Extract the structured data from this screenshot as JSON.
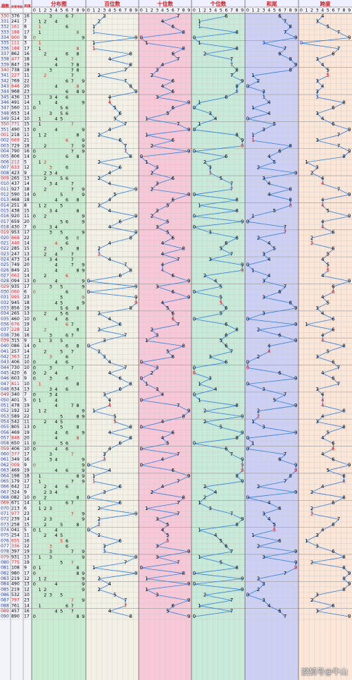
{
  "header": {
    "row_col_label": "期数",
    "num_col_label": "开奖号码",
    "sum_col_label": "和值"
  },
  "sections": [
    {
      "name": "分布图",
      "color": "#c8ecd0"
    },
    {
      "name": "百位数",
      "color": "#f3f1e6"
    },
    {
      "name": "十位数",
      "color": "#f8c8d8"
    },
    {
      "name": "个位数",
      "color": "#c8ead8"
    },
    {
      "name": "和尾",
      "color": "#cdd0f4"
    },
    {
      "name": "跨度",
      "color": "#fbe6d8"
    }
  ],
  "digit_labels": [
    "0",
    "1",
    "2",
    "3",
    "4",
    "5",
    "6",
    "7",
    "8",
    "9"
  ],
  "watermark": "搜狐号@牛山",
  "colors": {
    "hit": "#000000",
    "repeat": "#e02020",
    "blue": "#1a3ed8",
    "line": "#2f7fe0",
    "issue": "#cc2020",
    "grid": "#c9c9c9"
  },
  "chart_data": {
    "type": "table",
    "title": "",
    "series": [
      {
        "name": "百位数"
      },
      {
        "name": "十位数"
      },
      {
        "name": "个位数"
      },
      {
        "name": "和尾"
      },
      {
        "name": "跨度"
      }
    ],
    "rows": [
      {
        "issue": "330",
        "num": "376",
        "sum": 16
      },
      {
        "issue": "331",
        "num": "241",
        "sum": 7
      },
      {
        "issue": "332",
        "num": "161",
        "sum": 8
      },
      {
        "issue": "333",
        "num": "188",
        "sum": 17
      },
      {
        "issue": "334",
        "num": "900",
        "sum": 9
      },
      {
        "issue": "335",
        "num": "111",
        "sum": 3
      },
      {
        "issue": "336",
        "num": "188",
        "sum": 17
      },
      {
        "issue": "337",
        "num": "862",
        "sum": 16
      },
      {
        "issue": "338",
        "num": "477",
        "sum": 18
      },
      {
        "issue": "339",
        "num": "847",
        "sum": 19
      },
      {
        "issue": "340",
        "num": "738",
        "sum": 18
      },
      {
        "issue": "341",
        "num": "227",
        "sum": 11
      },
      {
        "issue": "342",
        "num": "769",
        "sum": 22
      },
      {
        "issue": "343",
        "num": "848",
        "sum": 20
      },
      {
        "issue": "344",
        "num": "968",
        "sum": 23
      },
      {
        "issue": "345",
        "num": "436",
        "sum": 13
      },
      {
        "issue": "346",
        "num": "491",
        "sum": 14
      },
      {
        "issue": "347",
        "num": "560",
        "sum": 11
      },
      {
        "issue": "348",
        "num": "653",
        "sum": 14
      },
      {
        "issue": "349",
        "num": "514",
        "sum": 10
      },
      {
        "issue": "350",
        "num": "771",
        "sum": 15
      },
      {
        "issue": "351",
        "num": "490",
        "sum": 13
      },
      {
        "issue": "001",
        "num": "218",
        "sum": 11
      },
      {
        "issue": "002",
        "num": "669",
        "sum": 21
      },
      {
        "issue": "003",
        "num": "729",
        "sum": 18
      },
      {
        "issue": "004",
        "num": "790",
        "sum": 16
      },
      {
        "issue": "005",
        "num": "806",
        "sum": 14
      },
      {
        "issue": "006",
        "num": "212",
        "sum": 5
      },
      {
        "issue": "007",
        "num": "633",
        "sum": 12
      },
      {
        "issue": "008",
        "num": "423",
        "sum": 9
      },
      {
        "issue": "009",
        "num": "265",
        "sum": 13
      },
      {
        "issue": "010",
        "num": "437",
        "sum": 14
      },
      {
        "issue": "011",
        "num": "927",
        "sum": 18
      },
      {
        "issue": "012",
        "num": "590",
        "sum": 14
      },
      {
        "issue": "013",
        "num": "468",
        "sum": 18
      },
      {
        "issue": "014",
        "num": "251",
        "sum": 8
      },
      {
        "issue": "015",
        "num": "438",
        "sum": 15
      },
      {
        "issue": "016",
        "num": "920",
        "sum": 11
      },
      {
        "issue": "017",
        "num": "659",
        "sum": 20
      },
      {
        "issue": "018",
        "num": "430",
        "sum": 7
      },
      {
        "issue": "019",
        "num": "953",
        "sum": 17
      },
      {
        "issue": "020",
        "num": "868",
        "sum": 22
      },
      {
        "issue": "021",
        "num": "446",
        "sum": 14
      },
      {
        "issue": "022",
        "num": "285",
        "sum": 15
      },
      {
        "issue": "023",
        "num": "247",
        "sum": 13
      },
      {
        "issue": "024",
        "num": "473",
        "sum": 14
      },
      {
        "issue": "025",
        "num": "749",
        "sum": 20
      },
      {
        "issue": "026",
        "num": "849",
        "sum": 21
      },
      {
        "issue": "027",
        "num": "662",
        "sum": 14
      },
      {
        "issue": "028",
        "num": "094",
        "sum": 13
      },
      {
        "issue": "029",
        "num": "935",
        "sum": 17
      },
      {
        "issue": "030",
        "num": "060",
        "sum": 6
      },
      {
        "issue": "031",
        "num": "995",
        "sum": 23
      },
      {
        "issue": "032",
        "num": "945",
        "sum": 18
      },
      {
        "issue": "033",
        "num": "856",
        "sum": 19
      },
      {
        "issue": "034",
        "num": "265",
        "sum": 13
      },
      {
        "issue": "035",
        "num": "460",
        "sum": 10
      },
      {
        "issue": "036",
        "num": "676",
        "sum": 19
      },
      {
        "issue": "037",
        "num": "228",
        "sum": 12
      },
      {
        "issue": "038",
        "num": "736",
        "sum": 16
      },
      {
        "issue": "039",
        "num": "315",
        "sum": 9
      },
      {
        "issue": "040",
        "num": "086",
        "sum": 14
      },
      {
        "issue": "041",
        "num": "257",
        "sum": 14
      },
      {
        "issue": "042",
        "num": "363",
        "sum": 12
      },
      {
        "issue": "043",
        "num": "406",
        "sum": 10
      },
      {
        "issue": "044",
        "num": "730",
        "sum": 10
      },
      {
        "issue": "045",
        "num": "420",
        "sum": 6
      },
      {
        "issue": "046",
        "num": "603",
        "sum": 9
      },
      {
        "issue": "047",
        "num": "811",
        "sum": 10
      },
      {
        "issue": "048",
        "num": "634",
        "sum": 13
      },
      {
        "issue": "049",
        "num": "340",
        "sum": 7
      },
      {
        "issue": "050",
        "num": "401",
        "sum": 5
      },
      {
        "issue": "051",
        "num": "478",
        "sum": 19
      },
      {
        "issue": "052",
        "num": "192",
        "sum": 12
      },
      {
        "issue": "053",
        "num": "589",
        "sum": 22
      },
      {
        "issue": "054",
        "num": "542",
        "sum": 11
      },
      {
        "issue": "055",
        "num": "805",
        "sum": 13
      },
      {
        "issue": "056",
        "num": "469",
        "sum": 19
      },
      {
        "issue": "057",
        "num": "848",
        "sum": 20
      },
      {
        "issue": "058",
        "num": "650",
        "sum": 11
      },
      {
        "issue": "059",
        "num": "406",
        "sum": 10
      },
      {
        "issue": "060",
        "num": "377",
        "sum": 17
      },
      {
        "issue": "061",
        "num": "349",
        "sum": 16
      },
      {
        "issue": "062",
        "num": "009",
        "sum": 9
      },
      {
        "issue": "063",
        "num": "469",
        "sum": 19
      },
      {
        "issue": "064",
        "num": "198",
        "sum": 18
      },
      {
        "issue": "065",
        "num": "179",
        "sum": 17
      },
      {
        "issue": "066",
        "num": "642",
        "sum": 12
      },
      {
        "issue": "067",
        "num": "324",
        "sum": 9
      },
      {
        "issue": "068",
        "num": "082",
        "sum": 10
      },
      {
        "issue": "069",
        "num": "671",
        "sum": 14
      },
      {
        "issue": "070",
        "num": "213",
        "sum": 6
      },
      {
        "issue": "071",
        "num": "977",
        "sum": 23
      },
      {
        "issue": "072",
        "num": "239",
        "sum": 14
      },
      {
        "issue": "073",
        "num": "258",
        "sum": 15
      },
      {
        "issue": "074",
        "num": "041",
        "sum": 5
      },
      {
        "issue": "075",
        "num": "254",
        "sum": 11
      },
      {
        "issue": "076",
        "num": "655",
        "sum": 16
      },
      {
        "issue": "077",
        "num": "336",
        "sum": 12
      },
      {
        "issue": "078",
        "num": "397",
        "sum": 19
      },
      {
        "issue": "079",
        "num": "931",
        "sum": 13
      },
      {
        "issue": "080",
        "num": "775",
        "sum": 19
      },
      {
        "issue": "081",
        "num": "108",
        "sum": 9
      },
      {
        "issue": "082",
        "num": "980",
        "sum": 17
      },
      {
        "issue": "083",
        "num": "219",
        "sum": 12
      },
      {
        "issue": "084",
        "num": "490",
        "sum": 13
      },
      {
        "issue": "085",
        "num": "219",
        "sum": 12
      },
      {
        "issue": "086",
        "num": "532",
        "sum": 10
      },
      {
        "issue": "087",
        "num": "797",
        "sum": 23
      },
      {
        "issue": "088",
        "num": "761",
        "sum": 14
      },
      {
        "issue": "089",
        "num": "457",
        "sum": 16
      },
      {
        "issue": "090",
        "num": "890",
        "sum": 17
      }
    ]
  }
}
